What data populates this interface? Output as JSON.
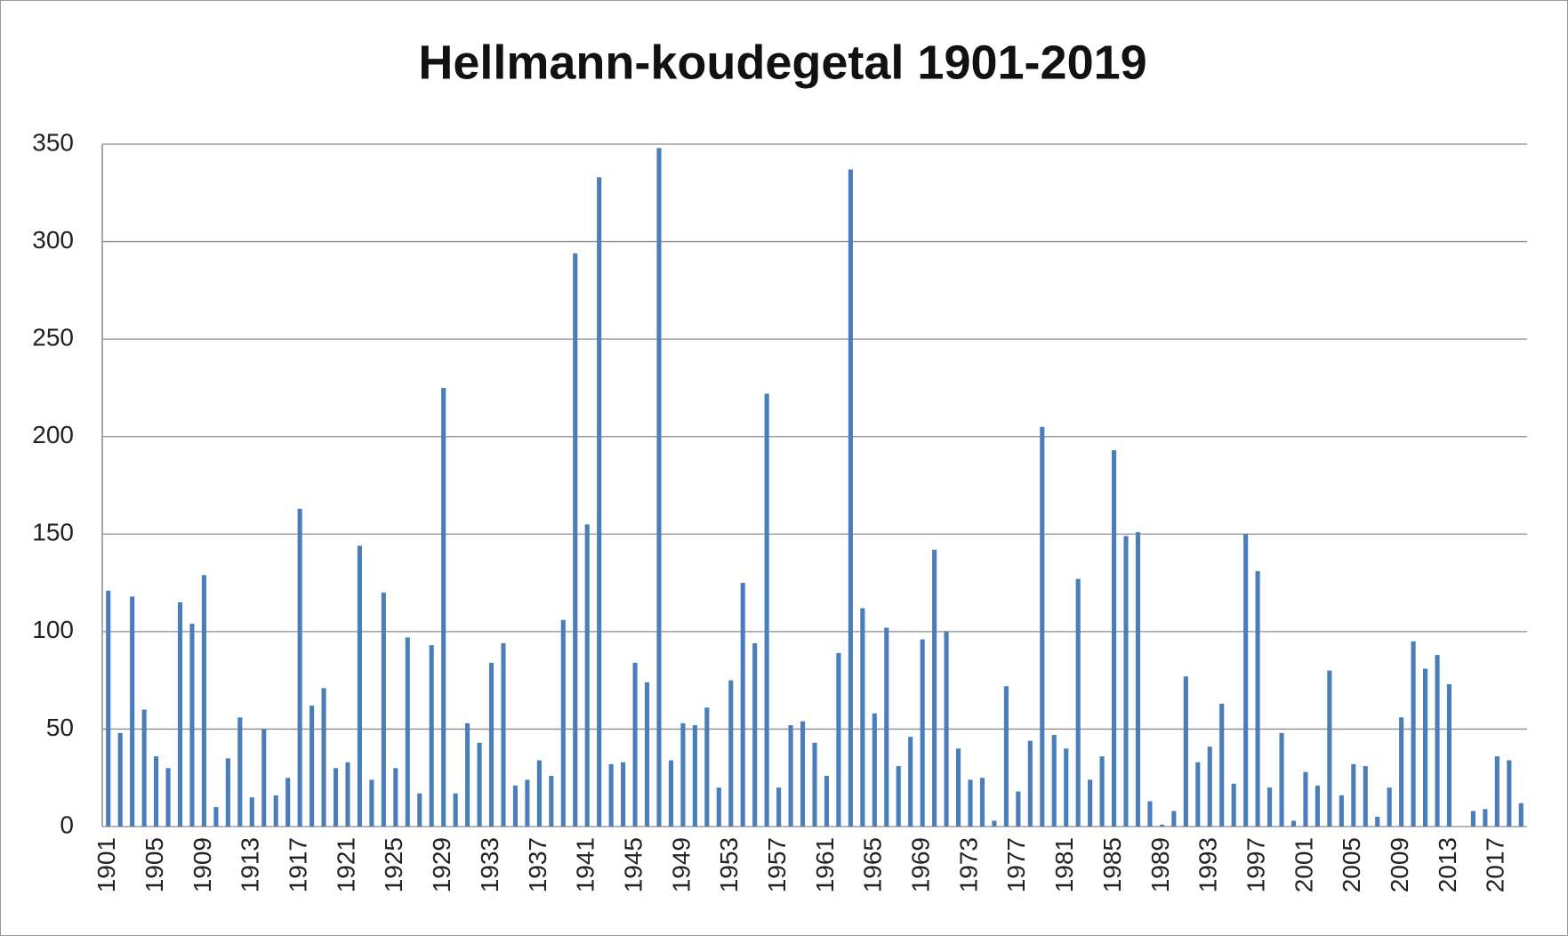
{
  "chart_data": {
    "type": "bar",
    "title": "Hellmann-koudegetal 1901-2019",
    "categories": [
      "1901",
      null,
      null,
      null,
      "1905",
      null,
      null,
      null,
      "1909",
      null,
      null,
      null,
      "1913",
      null,
      null,
      null,
      "1917",
      null,
      null,
      null,
      "1921",
      null,
      null,
      null,
      "1925",
      null,
      null,
      null,
      "1929",
      null,
      null,
      null,
      "1933",
      null,
      null,
      null,
      "1937",
      null,
      null,
      null,
      "1941",
      null,
      null,
      null,
      "1945",
      null,
      null,
      null,
      "1949",
      null,
      null,
      null,
      "1953",
      null,
      null,
      null,
      "1957",
      null,
      null,
      null,
      "1961",
      null,
      null,
      null,
      "1965",
      null,
      null,
      null,
      "1969",
      null,
      null,
      null,
      "1973",
      null,
      null,
      null,
      "1977",
      null,
      null,
      null,
      "1981",
      null,
      null,
      null,
      "1985",
      null,
      null,
      null,
      "1989",
      null,
      null,
      null,
      "1993",
      null,
      null,
      null,
      "1997",
      null,
      null,
      null,
      "2001",
      null,
      null,
      null,
      "2005",
      null,
      null,
      null,
      "2009",
      null,
      null,
      null,
      "2013",
      null,
      null,
      null,
      "2017",
      null,
      null
    ],
    "values": [
      121,
      48,
      118,
      60,
      36,
      30,
      115,
      104,
      129,
      10,
      35,
      56,
      15,
      50,
      16,
      25,
      163,
      62,
      71,
      30,
      33,
      144,
      24,
      120,
      30,
      97,
      17,
      93,
      225,
      17,
      53,
      43,
      84,
      94,
      21,
      24,
      34,
      26,
      106,
      294,
      155,
      333,
      32,
      33,
      84,
      74,
      348,
      34,
      53,
      52,
      61,
      20,
      75,
      125,
      94,
      222,
      20,
      52,
      54,
      43,
      26,
      89,
      337,
      112,
      58,
      102,
      31,
      46,
      96,
      142,
      100,
      40,
      24,
      25,
      3,
      72,
      18,
      44,
      205,
      47,
      40,
      127,
      24,
      36,
      193,
      149,
      151,
      13,
      1,
      8,
      77,
      33,
      41,
      63,
      22,
      150,
      131,
      20,
      48,
      3,
      28,
      21,
      80,
      16,
      32,
      31,
      5,
      20,
      56,
      95,
      81,
      88,
      73,
      0,
      8,
      9,
      36,
      34,
      12
    ],
    "color": "#4a7ebb",
    "ylim": [
      0,
      350
    ],
    "yticks": [
      0,
      50,
      100,
      150,
      200,
      250,
      300,
      350
    ],
    "grid": true
  }
}
